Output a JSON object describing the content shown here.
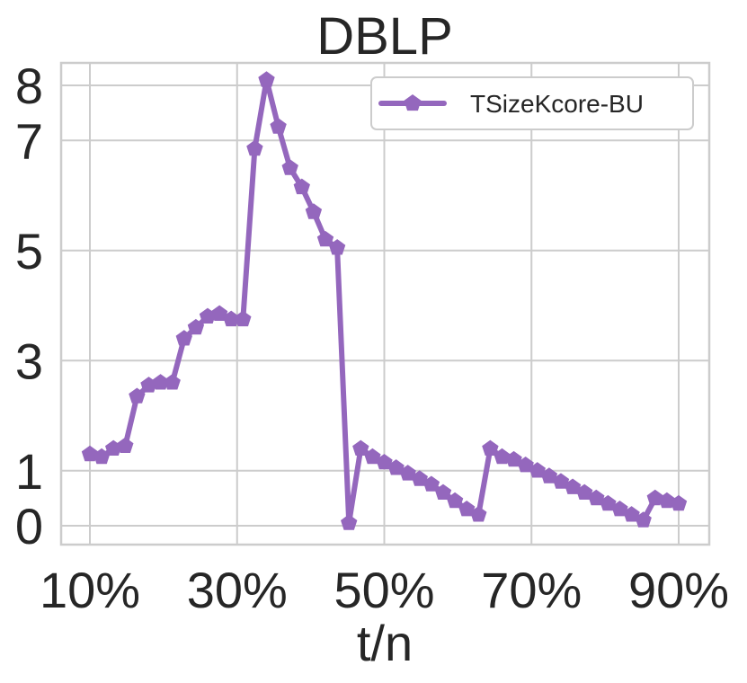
{
  "chart_data": {
    "type": "line",
    "title": "DBLP",
    "xlabel": "t/n",
    "ylabel": "",
    "xlim": [
      8,
      92
    ],
    "ylim": [
      -0.35,
      8.5
    ],
    "x_ticks": [
      10,
      30,
      50,
      70,
      90
    ],
    "x_tick_labels": [
      "10%",
      "30%",
      "50%",
      "70%",
      "90%"
    ],
    "y_ticks": [
      0,
      1,
      3,
      5,
      7,
      8
    ],
    "y_tick_labels": [
      "0",
      "1",
      "3",
      "5",
      "7",
      "8"
    ],
    "grid": true,
    "legend_position": "top-right",
    "colors": {
      "series": "#9467bd",
      "grid": "#cccccc",
      "text": "#262626"
    },
    "series": [
      {
        "name": "TSizeKcore-BU",
        "marker": "pentagon",
        "x": [
          10,
          11.6,
          13.2,
          14.8,
          16.4,
          18,
          19.6,
          21.2,
          22.8,
          24.4,
          26,
          27.6,
          29.2,
          30.8,
          32.4,
          34,
          35.6,
          37.2,
          38.8,
          40.4,
          42,
          43.6,
          45.2,
          46.8,
          48.4,
          50,
          51.6,
          53.2,
          54.8,
          56.4,
          58,
          59.6,
          61.2,
          62.8,
          64.4,
          66,
          67.6,
          69.2,
          70.8,
          72.4,
          74,
          75.6,
          77.2,
          78.8,
          80.4,
          82,
          83.6,
          85.2,
          86.8,
          88.4,
          90
        ],
        "y": [
          1.3,
          1.25,
          1.4,
          1.45,
          2.35,
          2.55,
          2.6,
          2.6,
          3.4,
          3.6,
          3.8,
          3.85,
          3.75,
          3.75,
          6.85,
          8.1,
          7.25,
          6.5,
          6.15,
          5.7,
          5.2,
          5.05,
          0.05,
          1.4,
          1.25,
          1.15,
          1.05,
          0.95,
          0.85,
          0.75,
          0.6,
          0.45,
          0.3,
          0.2,
          1.4,
          1.25,
          1.2,
          1.1,
          1.0,
          0.9,
          0.8,
          0.7,
          0.6,
          0.5,
          0.4,
          0.3,
          0.2,
          0.1,
          0.5,
          0.45,
          0.4
        ]
      }
    ]
  }
}
